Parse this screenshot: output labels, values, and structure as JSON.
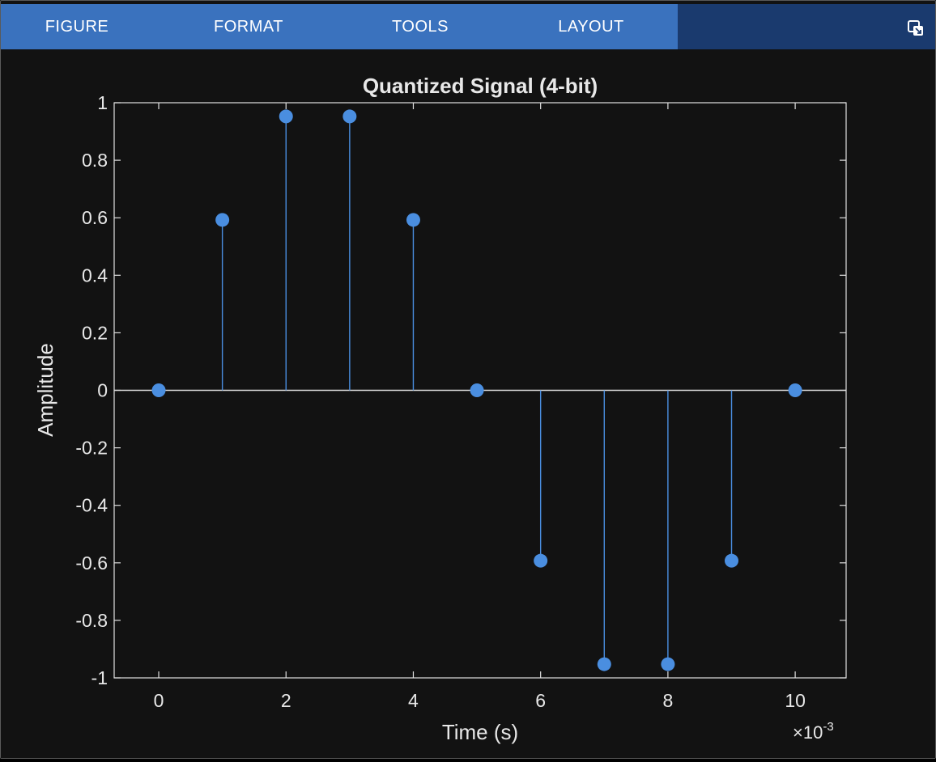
{
  "toolstrip": {
    "tabs": [
      "FIGURE",
      "FORMAT",
      "TOOLS",
      "LAYOUT"
    ],
    "undock_icon": "undock-icon"
  },
  "colors": {
    "tab_bar": "#3a72be",
    "toolstrip_bg": "#1a3a6e",
    "figure_bg": "#121212",
    "axes_line": "#e0e0e0",
    "series": "#4a8ee0"
  },
  "chart_data": {
    "type": "stem",
    "title": "Quantized Signal (4-bit)",
    "xlabel": "Time (s)",
    "ylabel": "Amplitude",
    "x_exponent_label": "×10",
    "x_exponent_power": "-3",
    "x": [
      0,
      0.001,
      0.002,
      0.003,
      0.004,
      0.005,
      0.006,
      0.007,
      0.008,
      0.009,
      0.01
    ],
    "y": [
      0,
      0.5926,
      0.9524,
      0.9524,
      0.5926,
      0,
      -0.5926,
      -0.9524,
      -0.9524,
      -0.5926,
      0
    ],
    "xlim": [
      -0.0007,
      0.0108
    ],
    "ylim": [
      -1,
      1
    ],
    "xticks": [
      0,
      0.002,
      0.004,
      0.006,
      0.008,
      0.01
    ],
    "xtick_labels": [
      "0",
      "2",
      "4",
      "6",
      "8",
      "10"
    ],
    "yticks": [
      -1,
      -0.8,
      -0.6,
      -0.4,
      -0.2,
      0,
      0.2,
      0.4,
      0.6,
      0.8,
      1
    ],
    "ytick_labels": [
      "-1",
      "-0.8",
      "-0.6",
      "-0.4",
      "-0.2",
      "0",
      "0.2",
      "0.4",
      "0.6",
      "0.8",
      "1"
    ],
    "grid": false,
    "baseline": 0
  }
}
